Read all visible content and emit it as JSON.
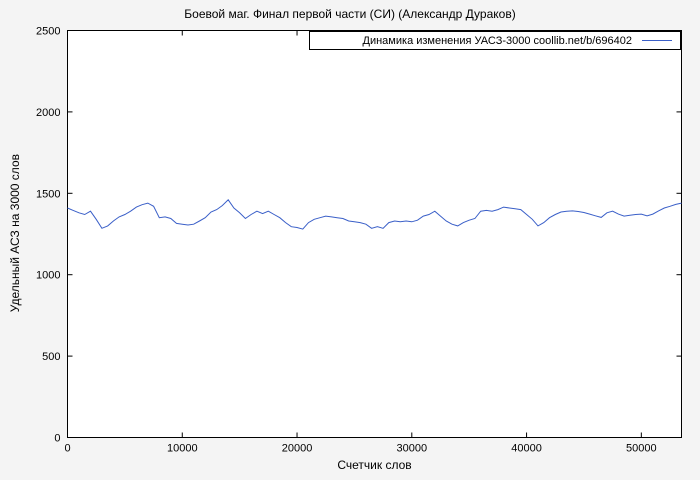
{
  "chart_data": {
    "type": "line",
    "title": "Боевой маг. Финал первой части (СИ) (Александр Дураков)",
    "xlabel": "Счетчик слов",
    "ylabel": "Удельный АСЗ на 3000 слов",
    "xlim": [
      0,
      53500
    ],
    "ylim": [
      0,
      2500
    ],
    "x_ticks": [
      0,
      10000,
      20000,
      30000,
      40000,
      50000
    ],
    "y_ticks": [
      0,
      500,
      1000,
      1500,
      2000,
      2500
    ],
    "grid": false,
    "legend_position": "top-right-inside",
    "legend_label": "Динамика изменения УАСЗ-3000 coollib.net/b/696402",
    "series": [
      {
        "name": "Динамика изменения УАСЗ-3000 coollib.net/b/696402",
        "color": "#3a5fc8",
        "points": [
          [
            0,
            1410
          ],
          [
            500,
            1395
          ],
          [
            1000,
            1380
          ],
          [
            1500,
            1370
          ],
          [
            2000,
            1390
          ],
          [
            2500,
            1340
          ],
          [
            3000,
            1285
          ],
          [
            3500,
            1300
          ],
          [
            4000,
            1330
          ],
          [
            4500,
            1355
          ],
          [
            5000,
            1370
          ],
          [
            5500,
            1390
          ],
          [
            6000,
            1415
          ],
          [
            6500,
            1430
          ],
          [
            7000,
            1440
          ],
          [
            7500,
            1420
          ],
          [
            8000,
            1350
          ],
          [
            8500,
            1355
          ],
          [
            9000,
            1345
          ],
          [
            9500,
            1315
          ],
          [
            10000,
            1310
          ],
          [
            10500,
            1305
          ],
          [
            11000,
            1310
          ],
          [
            11500,
            1330
          ],
          [
            12000,
            1350
          ],
          [
            12500,
            1385
          ],
          [
            13000,
            1400
          ],
          [
            13500,
            1425
          ],
          [
            14000,
            1460
          ],
          [
            14500,
            1410
          ],
          [
            15000,
            1380
          ],
          [
            15500,
            1345
          ],
          [
            16000,
            1370
          ],
          [
            16500,
            1390
          ],
          [
            17000,
            1375
          ],
          [
            17500,
            1390
          ],
          [
            18000,
            1370
          ],
          [
            18500,
            1350
          ],
          [
            19000,
            1320
          ],
          [
            19500,
            1295
          ],
          [
            20000,
            1290
          ],
          [
            20500,
            1280
          ],
          [
            21000,
            1320
          ],
          [
            21500,
            1340
          ],
          [
            22000,
            1350
          ],
          [
            22500,
            1360
          ],
          [
            23000,
            1355
          ],
          [
            23500,
            1350
          ],
          [
            24000,
            1345
          ],
          [
            24500,
            1330
          ],
          [
            25000,
            1325
          ],
          [
            25500,
            1320
          ],
          [
            26000,
            1310
          ],
          [
            26500,
            1285
          ],
          [
            27000,
            1295
          ],
          [
            27500,
            1285
          ],
          [
            28000,
            1320
          ],
          [
            28500,
            1330
          ],
          [
            29000,
            1325
          ],
          [
            29500,
            1330
          ],
          [
            30000,
            1325
          ],
          [
            30500,
            1335
          ],
          [
            31000,
            1360
          ],
          [
            31500,
            1370
          ],
          [
            32000,
            1390
          ],
          [
            32500,
            1360
          ],
          [
            33000,
            1330
          ],
          [
            33500,
            1310
          ],
          [
            34000,
            1300
          ],
          [
            34500,
            1320
          ],
          [
            35000,
            1335
          ],
          [
            35500,
            1345
          ],
          [
            36000,
            1390
          ],
          [
            36500,
            1395
          ],
          [
            37000,
            1390
          ],
          [
            37500,
            1400
          ],
          [
            38000,
            1415
          ],
          [
            38500,
            1410
          ],
          [
            39000,
            1405
          ],
          [
            39500,
            1400
          ],
          [
            40000,
            1370
          ],
          [
            40500,
            1340
          ],
          [
            41000,
            1300
          ],
          [
            41500,
            1320
          ],
          [
            42000,
            1350
          ],
          [
            42500,
            1370
          ],
          [
            43000,
            1385
          ],
          [
            43500,
            1390
          ],
          [
            44000,
            1392
          ],
          [
            44500,
            1388
          ],
          [
            45000,
            1382
          ],
          [
            45500,
            1372
          ],
          [
            46000,
            1362
          ],
          [
            46500,
            1352
          ],
          [
            47000,
            1380
          ],
          [
            47500,
            1390
          ],
          [
            48000,
            1372
          ],
          [
            48500,
            1360
          ],
          [
            49000,
            1365
          ],
          [
            49500,
            1370
          ],
          [
            50000,
            1372
          ],
          [
            50500,
            1362
          ],
          [
            51000,
            1372
          ],
          [
            51500,
            1392
          ],
          [
            52000,
            1410
          ],
          [
            52500,
            1420
          ],
          [
            53000,
            1432
          ],
          [
            53500,
            1440
          ]
        ]
      }
    ]
  }
}
